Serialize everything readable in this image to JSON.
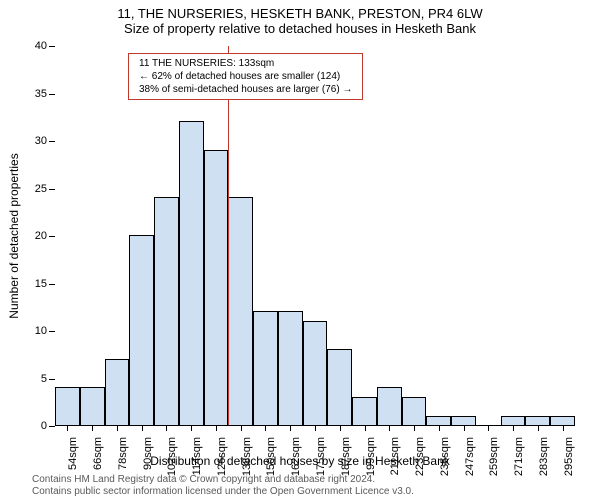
{
  "title_main": "11, THE NURSERIES, HESKETH BANK, PRESTON, PR4 6LW",
  "title_sub": "Size of property relative to detached houses in Hesketh Bank",
  "ylabel": "Number of detached properties",
  "xlabel": "Distribution of detached houses by size in Hesketh Bank",
  "chart": {
    "type": "histogram",
    "ylim": [
      0,
      40
    ],
    "ytick_step": 5,
    "yticks": [
      0,
      5,
      10,
      15,
      20,
      25,
      30,
      35,
      40
    ],
    "xticks": [
      "54sqm",
      "66sqm",
      "78sqm",
      "90sqm",
      "102sqm",
      "114sqm",
      "126sqm",
      "138sqm",
      "150sqm",
      "162sqm",
      "175sqm",
      "187sqm",
      "199sqm",
      "211sqm",
      "223sqm",
      "235sqm",
      "247sqm",
      "259sqm",
      "271sqm",
      "283sqm",
      "295sqm"
    ],
    "values": [
      4,
      4,
      7,
      20,
      24,
      32,
      29,
      24,
      12,
      12,
      11,
      8,
      3,
      4,
      3,
      1,
      1,
      0,
      1,
      1,
      1
    ],
    "bar_fill": "#cfe0f3",
    "bar_stroke": "#000000",
    "grid_color": "#ffffff",
    "background": "#ffffff"
  },
  "reference_line": {
    "x_index": 7,
    "color": "#c0392b",
    "width": 1
  },
  "annotation": {
    "line1": "11 THE NURSERIES: 133sqm",
    "line2": "← 62% of detached houses are smaller (124)",
    "line3": "38% of semi-detached houses are larger (76) →",
    "border_color": "#c0392b"
  },
  "footer": {
    "line1": "Contains HM Land Registry data © Crown copyright and database right 2024.",
    "line2": "Contains public sector information licensed under the Open Government Licence v3.0."
  },
  "fonts": {
    "title": 13,
    "axis_label": 12,
    "tick": 11,
    "annotation": 10,
    "footer": 10
  }
}
